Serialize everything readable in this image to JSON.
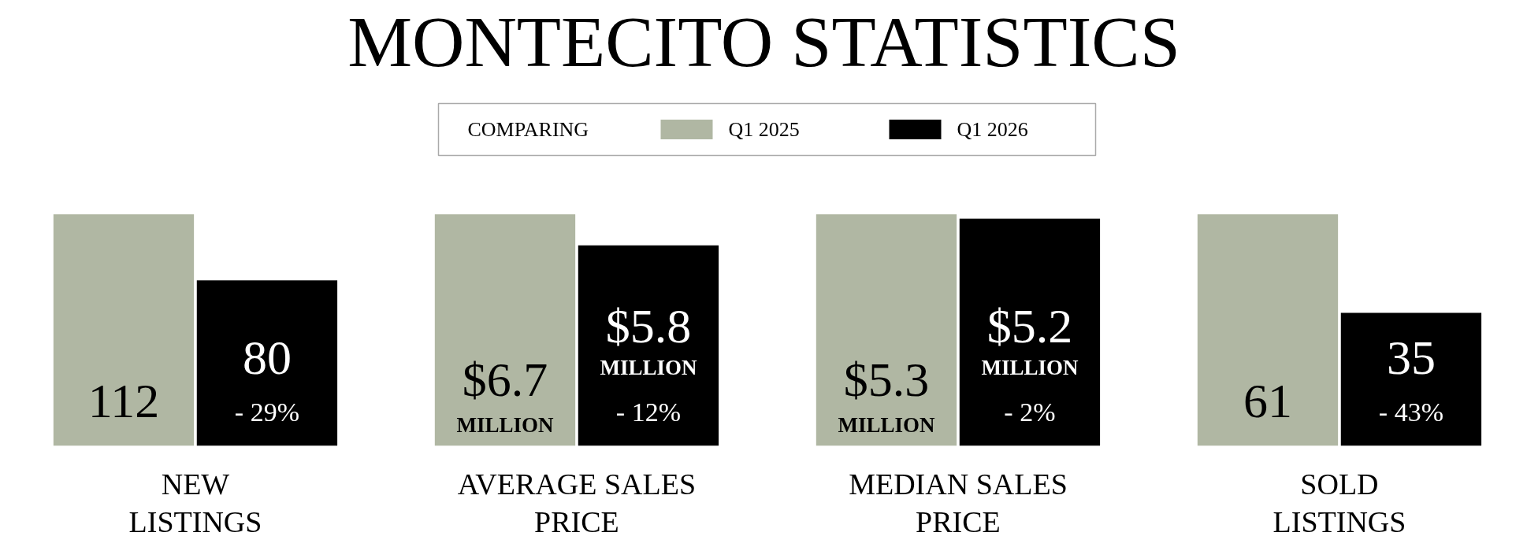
{
  "chart_data": [
    {
      "type": "bar",
      "title": "MONTECITO STATISTICS",
      "legend": "top",
      "legend_title": "COMPARING",
      "categories": [
        null
      ],
      "xlabel": "NEW LISTINGS",
      "annotations": [
        "- 29%"
      ],
      "series": [
        {
          "name": "Q1 2025",
          "color": "#b0b7a3",
          "values": [
            112
          ],
          "value_labels": [
            "112"
          ]
        },
        {
          "name": "Q1 2026",
          "color": "#000000",
          "values": [
            80
          ],
          "value_labels": [
            "80"
          ]
        }
      ]
    },
    {
      "type": "bar",
      "categories": [
        null
      ],
      "xlabel": "AVERAGE SALES PRICE",
      "annotations": [
        "- 12%"
      ],
      "series": [
        {
          "color": "#b0b7a3",
          "values": [
            6.7
          ],
          "value_labels": [
            "$6.7 MILLION"
          ]
        },
        {
          "color": "#000000",
          "values": [
            5.8
          ],
          "value_labels": [
            "$5.8 MILLION"
          ]
        }
      ]
    },
    {
      "type": "bar",
      "categories": [
        null
      ],
      "xlabel": "MEDIAN SALES PRICE",
      "annotations": [
        "- 2%"
      ],
      "series": [
        {
          "color": "#b0b7a3",
          "values": [
            5.3
          ],
          "value_labels": [
            "$5.3 MILLION"
          ]
        },
        {
          "color": "#000000",
          "values": [
            5.2
          ],
          "value_labels": [
            "$5.2 MILLION"
          ]
        }
      ]
    },
    {
      "type": "bar",
      "categories": [
        null
      ],
      "xlabel": "SOLD LISTINGS",
      "annotations": [
        "- 43%"
      ],
      "series": [
        {
          "color": "#b0b7a3",
          "values": [
            61
          ],
          "value_labels": [
            "61"
          ]
        },
        {
          "color": "#000000",
          "values": [
            35
          ],
          "value_labels": [
            "35"
          ]
        }
      ]
    }
  ]
}
